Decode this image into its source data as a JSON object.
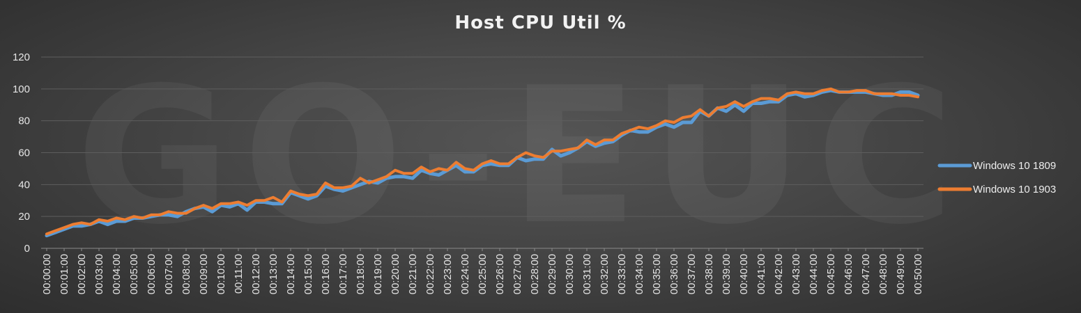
{
  "chart_data": {
    "type": "line",
    "title": "Host CPU Util %",
    "xlabel": "",
    "ylabel": "",
    "ylim": [
      0,
      120
    ],
    "yticks": [
      0,
      20,
      40,
      60,
      80,
      100,
      120
    ],
    "grid": true,
    "legend_position": "right",
    "watermark": "GO-EUC",
    "x_tick_labels": [
      "00:00:00",
      "00:01:00",
      "00:02:00",
      "00:03:00",
      "00:04:00",
      "00:05:00",
      "00:06:00",
      "00:07:00",
      "00:08:00",
      "00:09:00",
      "00:10:00",
      "00:11:00",
      "00:12:00",
      "00:13:00",
      "00:14:00",
      "00:15:00",
      "00:16:00",
      "00:17:00",
      "00:18:00",
      "00:19:00",
      "00:20:00",
      "00:21:00",
      "00:22:00",
      "00:23:00",
      "00:24:00",
      "00:25:00",
      "00:26:00",
      "00:27:00",
      "00:28:00",
      "00:29:00",
      "00:30:00",
      "00:31:00",
      "00:32:00",
      "00:33:00",
      "00:34:00",
      "00:35:00",
      "00:36:00",
      "00:37:00",
      "00:38:00",
      "00:39:00",
      "00:40:00",
      "00:41:00",
      "00:42:00",
      "00:43:00",
      "00:44:00",
      "00:45:00",
      "00:46:00",
      "00:47:00",
      "00:48:00",
      "00:49:00",
      "00:50:00"
    ],
    "x_samples_per_tick": 2,
    "series": [
      {
        "name": "Windows 10 1809",
        "color": "#5b9bd5",
        "values": [
          8,
          10,
          12,
          14,
          14,
          15,
          17,
          15,
          17,
          17,
          19,
          19,
          20,
          21,
          21,
          20,
          23,
          25,
          26,
          23,
          27,
          26,
          28,
          24,
          29,
          29,
          28,
          28,
          35,
          33,
          31,
          33,
          39,
          37,
          36,
          38,
          40,
          42,
          41,
          44,
          45,
          45,
          44,
          49,
          47,
          46,
          49,
          52,
          48,
          48,
          52,
          53,
          52,
          52,
          57,
          55,
          56,
          56,
          62,
          58,
          60,
          63,
          67,
          64,
          66,
          67,
          71,
          74,
          73,
          73,
          76,
          78,
          76,
          79,
          79,
          86,
          83,
          88,
          86,
          90,
          86,
          91,
          91,
          92,
          92,
          96,
          97,
          95,
          96,
          98,
          99,
          98,
          98,
          98,
          98,
          97,
          96,
          96,
          98,
          98,
          96
        ]
      },
      {
        "name": "Windows 10 1903",
        "color": "#ed7d31",
        "values": [
          9,
          11,
          13,
          15,
          16,
          15,
          18,
          17,
          19,
          18,
          20,
          19,
          21,
          21,
          23,
          22,
          22,
          25,
          27,
          25,
          28,
          28,
          29,
          27,
          30,
          30,
          32,
          29,
          36,
          34,
          33,
          34,
          41,
          38,
          38,
          39,
          44,
          41,
          43,
          45,
          49,
          47,
          47,
          51,
          48,
          50,
          49,
          54,
          50,
          49,
          53,
          55,
          53,
          53,
          57,
          60,
          58,
          57,
          61,
          61,
          62,
          63,
          68,
          65,
          68,
          68,
          72,
          74,
          76,
          75,
          77,
          80,
          79,
          82,
          83,
          87,
          83,
          88,
          89,
          92,
          89,
          92,
          94,
          94,
          93,
          97,
          98,
          97,
          97,
          99,
          100,
          98,
          98,
          99,
          99,
          97,
          97,
          97,
          96,
          96,
          95
        ]
      }
    ]
  }
}
